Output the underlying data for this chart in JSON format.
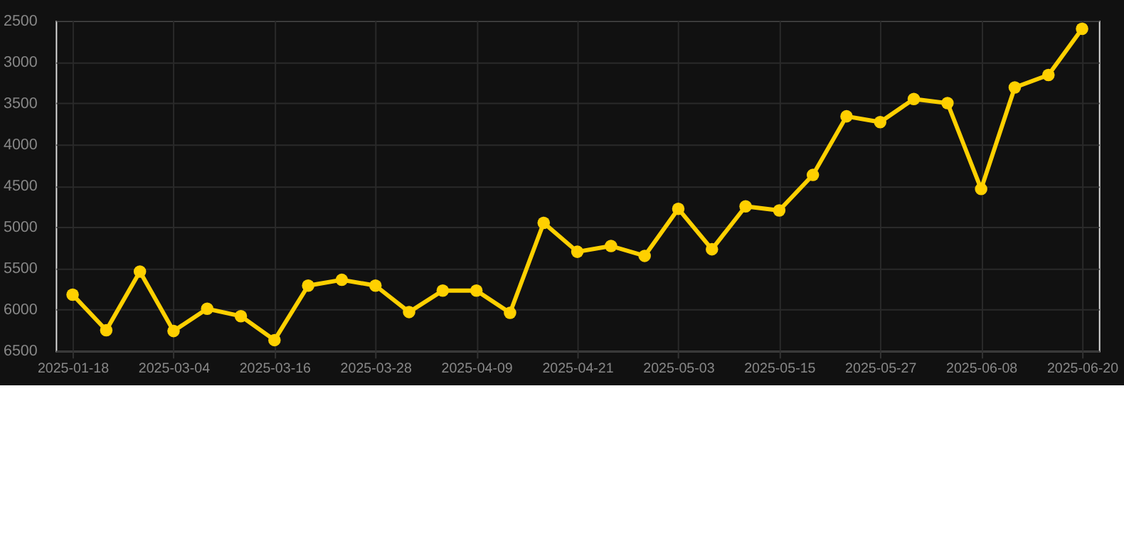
{
  "chart_data": {
    "type": "line",
    "categories": [
      "2025-01-18",
      null,
      null,
      "2025-03-04",
      null,
      null,
      "2025-03-16",
      null,
      null,
      "2025-03-28",
      null,
      null,
      "2025-04-09",
      null,
      null,
      "2025-04-21",
      null,
      null,
      "2025-05-03",
      null,
      null,
      "2025-05-15",
      null,
      null,
      "2025-05-27",
      null,
      null,
      "2025-06-08",
      null,
      null,
      "2025-06-20"
    ],
    "series": [
      {
        "color": "#ffd000",
        "values": [
          5820,
          6250,
          5540,
          6260,
          5990,
          6080,
          6370,
          5710,
          5640,
          5710,
          6030,
          5770,
          5770,
          6040,
          4950,
          5300,
          5230,
          5350,
          4780,
          5270,
          4750,
          4800,
          4370,
          3660,
          3730,
          3450,
          3500,
          4540,
          3310,
          3160,
          2600
        ]
      }
    ],
    "ylim": [
      6500,
      2500
    ],
    "yticks": [
      2500,
      3000,
      3500,
      4000,
      4500,
      5000,
      5500,
      6000,
      6500
    ],
    "grid": true,
    "marker": "circle",
    "line_style": "solid",
    "legend": false
  }
}
